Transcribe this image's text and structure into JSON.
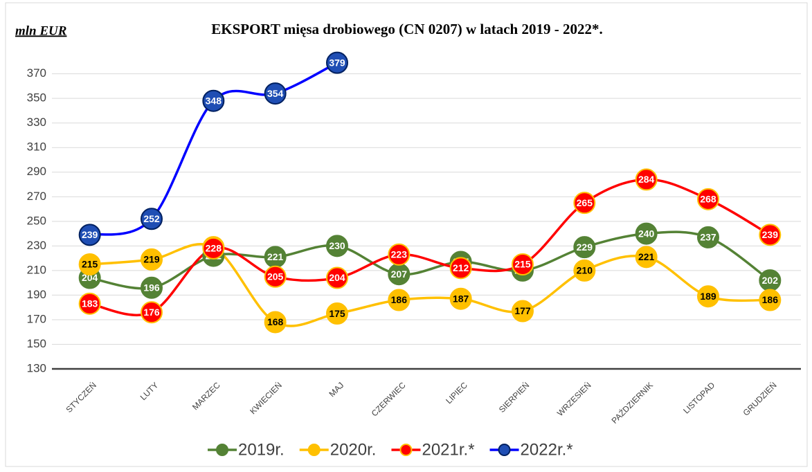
{
  "chart_data": {
    "type": "line",
    "title": "EKSPORT mięsa drobiowego (CN 0207) w latach 2019 - 2022*.",
    "y_label": "mln EUR",
    "categories": [
      "STYCZEŃ",
      "LUTY",
      "MARZEC",
      "KWIECIEŃ",
      "MAJ",
      "CZERWIEC",
      "LIPIEC",
      "SIERPIEŃ",
      "WRZESIEŃ",
      "PAŹDZIERNIK",
      "LISTOPAD",
      "GRUDZIEŃ"
    ],
    "series": [
      {
        "name": "2019r.",
        "color": "#548235",
        "values": [
          204,
          196,
          222,
          221,
          230,
          207,
          217,
          210,
          229,
          240,
          237,
          202
        ]
      },
      {
        "name": "2020r.",
        "color": "#ffc000",
        "values": [
          215,
          219,
          229,
          168,
          175,
          186,
          187,
          177,
          210,
          221,
          189,
          186
        ]
      },
      {
        "name": "2021r.*",
        "color": "#ff0000",
        "values": [
          183,
          176,
          228,
          205,
          204,
          223,
          212,
          215,
          265,
          284,
          268,
          239
        ]
      },
      {
        "name": "2022r.*",
        "color": "#0000ff",
        "values": [
          239,
          252,
          348,
          354,
          379,
          null,
          null,
          null,
          null,
          null,
          null,
          null
        ]
      }
    ],
    "ylim": [
      130,
      385
    ],
    "yticks": [
      130,
      150,
      170,
      190,
      210,
      230,
      250,
      270,
      290,
      310,
      330,
      350,
      370
    ],
    "grid": true,
    "legend": "bottom"
  }
}
